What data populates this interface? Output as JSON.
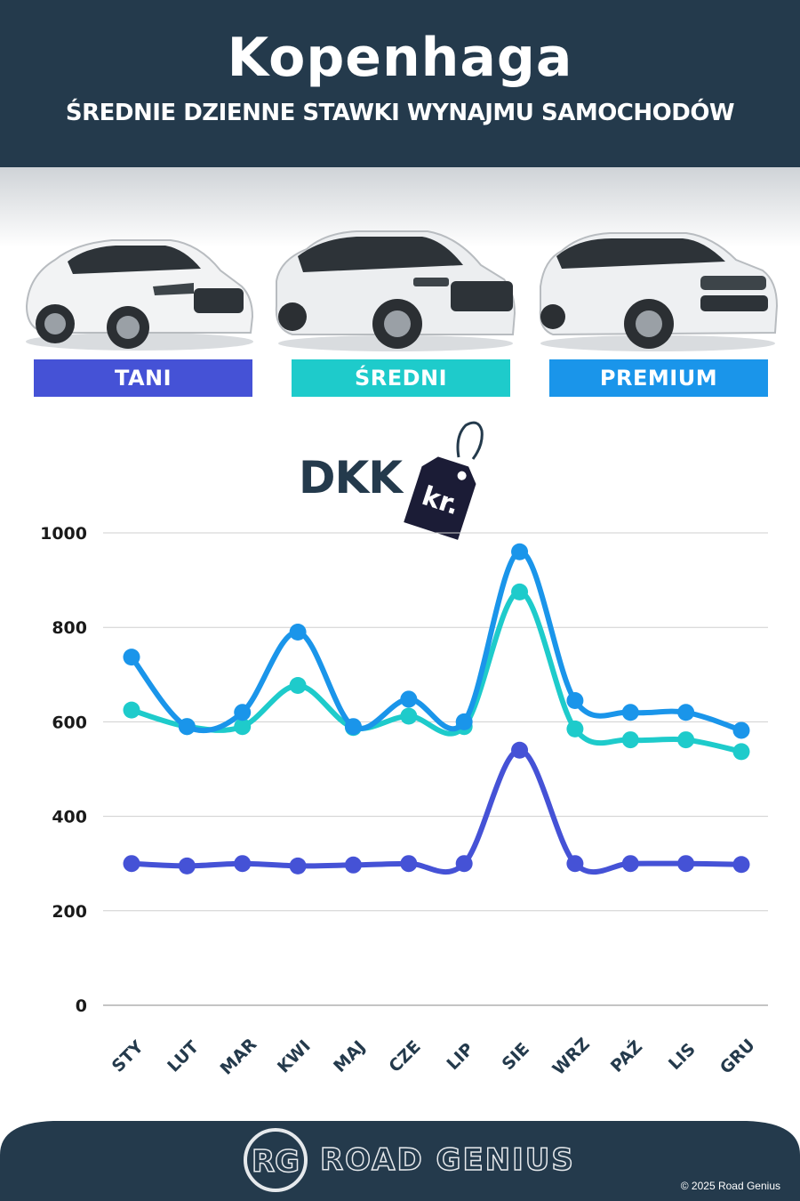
{
  "header": {
    "title": "Kopenhaga",
    "subtitle": "ŚREDNIE DZIENNE STAWKI WYNAJMU SAMOCHODÓW"
  },
  "categories": [
    {
      "label": "TANI",
      "color": "#4552d6"
    },
    {
      "label": "ŚREDNI",
      "color": "#1ecbcb"
    },
    {
      "label": "PREMIUM",
      "color": "#1a95ea"
    }
  ],
  "currency": {
    "code": "DKK",
    "tag": "kr."
  },
  "chart_data": {
    "type": "line",
    "categories": [
      "STY",
      "LUT",
      "MAR",
      "KWI",
      "MAJ",
      "CZE",
      "LIP",
      "SIE",
      "WRZ",
      "PAŹ",
      "LIS",
      "GRU"
    ],
    "series": [
      {
        "name": "TANI",
        "color": "#4552d6",
        "values": [
          300,
          295,
          300,
          295,
          297,
          300,
          300,
          540,
          300,
          300,
          300,
          298
        ]
      },
      {
        "name": "ŚREDNI",
        "color": "#1ecbcb",
        "values": [
          625,
          590,
          590,
          677,
          588,
          612,
          590,
          875,
          585,
          562,
          562,
          537
        ]
      },
      {
        "name": "PREMIUM",
        "color": "#1a95ea",
        "values": [
          737,
          590,
          620,
          790,
          590,
          648,
          600,
          960,
          645,
          620,
          620,
          582
        ]
      }
    ],
    "yticks": [
      0,
      200,
      400,
      600,
      800,
      1000
    ],
    "ylim": [
      0,
      1000
    ],
    "grid": true
  },
  "footer": {
    "logo_initials": "RG",
    "brand": "ROAD GENIUS",
    "copyright": "© 2025 Road Genius"
  },
  "colors": {
    "navy": "#243a4c",
    "grid": "#cfcfcf"
  }
}
